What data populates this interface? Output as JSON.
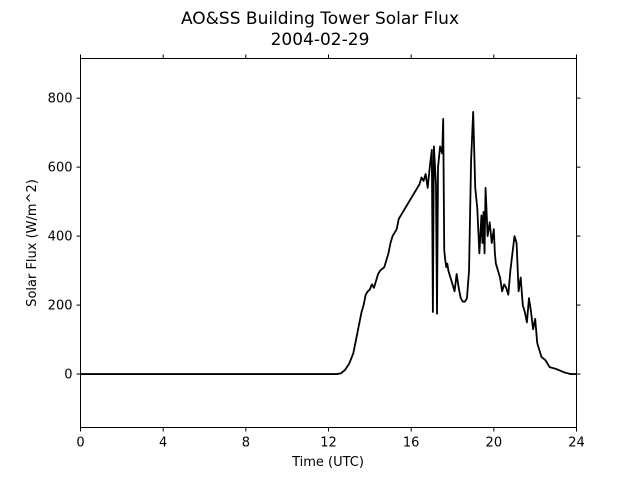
{
  "chart_data": {
    "type": "line",
    "title": "AO&SS Building Tower Solar Flux",
    "subtitle": "2004-02-29",
    "xlabel": "Time (UTC)",
    "ylabel": "Solar Flux (W/m^2)",
    "xlim": [
      0,
      24
    ],
    "ylim": [
      -155,
      915
    ],
    "xticks": [
      "0",
      "4",
      "8",
      "12",
      "16",
      "20",
      "24"
    ],
    "yticks": [
      "0",
      "200",
      "400",
      "600",
      "800"
    ],
    "grid": false,
    "series": [
      {
        "color": "#000000",
        "x": [
          0,
          12.4,
          12.6,
          12.8,
          13.0,
          13.2,
          13.4,
          13.5,
          13.6,
          13.7,
          13.8,
          13.9,
          14.0,
          14.1,
          14.2,
          14.3,
          14.4,
          14.5,
          14.6,
          14.7,
          14.8,
          14.9,
          15.0,
          15.1,
          15.2,
          15.3,
          15.4,
          15.5,
          15.7,
          15.9,
          16.1,
          16.2,
          16.3,
          16.4,
          16.5,
          16.6,
          16.7,
          16.8,
          16.9,
          17.0,
          17.05,
          17.1,
          17.2,
          17.25,
          17.3,
          17.4,
          17.5,
          17.55,
          17.6,
          17.65,
          17.7,
          17.75,
          17.8,
          17.9,
          18.0,
          18.1,
          18.2,
          18.3,
          18.4,
          18.5,
          18.6,
          18.7,
          18.8,
          18.9,
          19.0,
          19.1,
          19.2,
          19.3,
          19.4,
          19.45,
          19.5,
          19.55,
          19.6,
          19.7,
          19.8,
          19.9,
          20.0,
          20.05,
          20.1,
          20.2,
          20.3,
          20.4,
          20.5,
          20.6,
          20.7,
          20.8,
          20.9,
          21.0,
          21.1,
          21.2,
          21.3,
          21.4,
          21.5,
          21.6,
          21.7,
          21.8,
          21.9,
          22.0,
          22.1,
          22.2,
          22.3,
          22.5,
          22.7,
          23.0,
          23.2,
          23.4,
          23.7,
          24.0
        ],
        "y": [
          0,
          0,
          2,
          12,
          30,
          60,
          120,
          150,
          180,
          200,
          230,
          240,
          245,
          260,
          250,
          270,
          290,
          300,
          305,
          310,
          330,
          350,
          380,
          400,
          410,
          420,
          450,
          460,
          480,
          500,
          520,
          530,
          540,
          550,
          570,
          560,
          580,
          540,
          600,
          650,
          180,
          660,
          550,
          175,
          600,
          660,
          640,
          740,
          360,
          330,
          310,
          320,
          300,
          280,
          260,
          240,
          290,
          250,
          220,
          210,
          210,
          220,
          300,
          620,
          760,
          540,
          480,
          350,
          460,
          380,
          470,
          350,
          540,
          400,
          440,
          380,
          420,
          350,
          320,
          300,
          280,
          240,
          260,
          250,
          230,
          300,
          350,
          400,
          380,
          240,
          280,
          200,
          180,
          150,
          220,
          180,
          130,
          160,
          90,
          70,
          50,
          40,
          20,
          15,
          10,
          5,
          0,
          0
        ]
      }
    ]
  }
}
